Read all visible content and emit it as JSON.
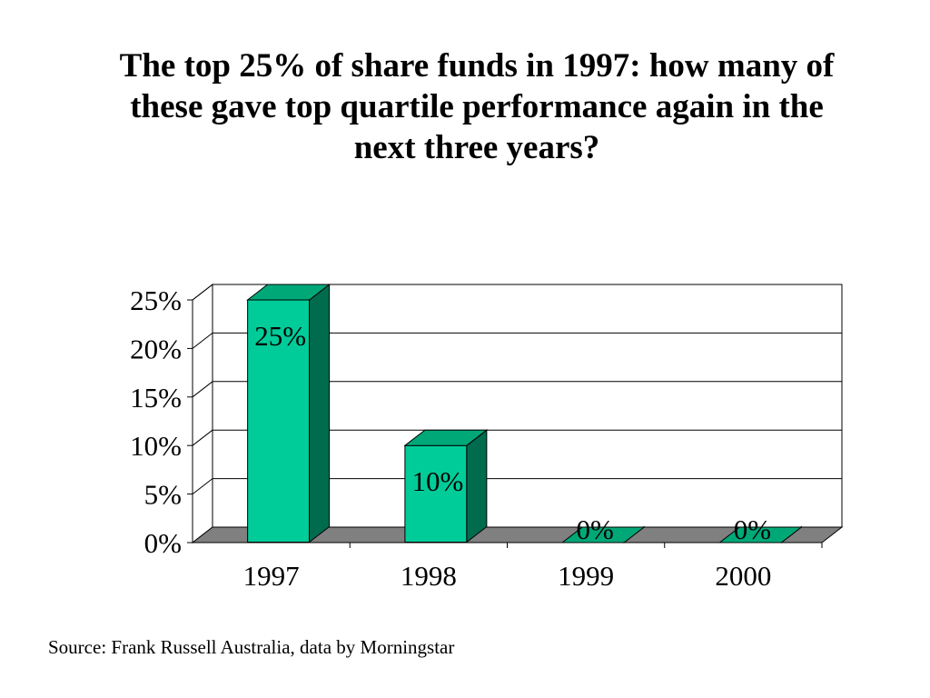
{
  "slide": {
    "title": "The top 25% of share funds in 1997: how many of these gave top quartile performance again in the next three years?",
    "source": "Source: Frank Russell Australia, data by Morningstar"
  },
  "chart_data": {
    "type": "bar",
    "title": "The top 25% of share funds in 1997: how many of these gave top quartile performance again in the next three years?",
    "categories": [
      "1997",
      "1998",
      "1999",
      "2000"
    ],
    "values": [
      25,
      10,
      0,
      0
    ],
    "data_labels": [
      "25%",
      "10%",
      "0%",
      "0%"
    ],
    "y_ticks": [
      0,
      5,
      10,
      15,
      20,
      25
    ],
    "y_tick_labels": [
      "0%",
      "5%",
      "10%",
      "15%",
      "20%",
      "25%"
    ],
    "ylim": [
      0,
      25
    ],
    "xlabel": "",
    "ylabel": "",
    "grid": true,
    "legend": "none",
    "three_d": true,
    "colors": {
      "bar_front": "#00CC99",
      "bar_top": "#00A878",
      "bar_side": "#006B4D",
      "floor": "#808080",
      "wall": "#FFFFFF"
    }
  }
}
